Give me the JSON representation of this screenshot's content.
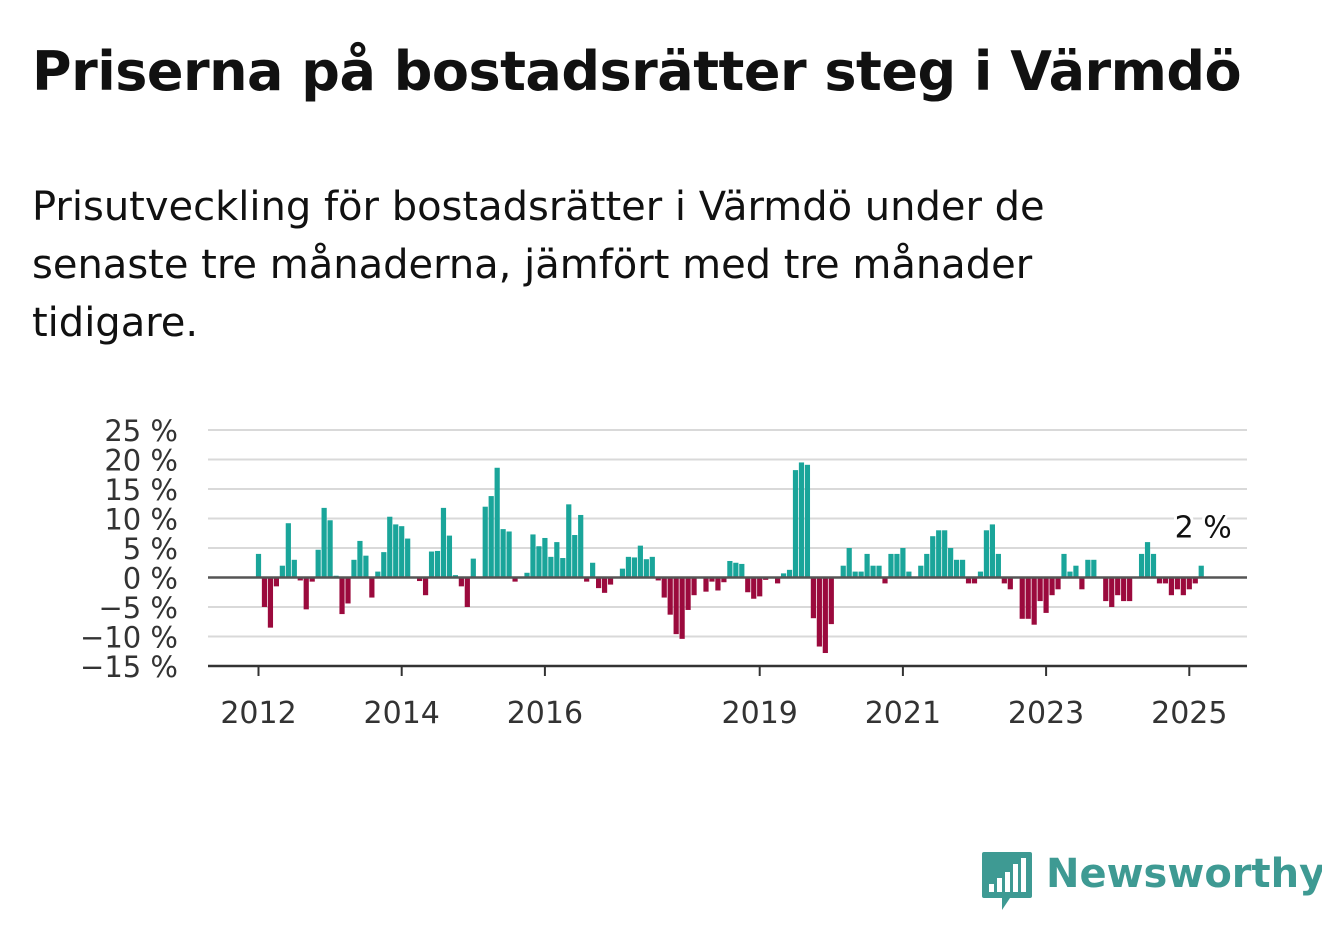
{
  "header": {
    "title": "Priserna på bostadsrätter steg i Värmdö",
    "subtitle": "Prisutveckling för bostadsrätter i Värmdö under de senaste tre månaderna, jämfört med tre månader tidigare."
  },
  "brand": {
    "name": "Newsworthy",
    "icon": "bar-chart-speech-bubble-icon",
    "color": "#3e9a93"
  },
  "chart_data": {
    "type": "bar",
    "title": "Priserna på bostadsrätter steg i Värmdö",
    "subtitle": "Prisutveckling för bostadsrätter i Värmdö under de senaste tre månaderna, jämfört med tre månader tidigare.",
    "xlabel": "",
    "ylabel": "",
    "ylim": [
      -15,
      25
    ],
    "yticks": [
      25,
      20,
      15,
      10,
      5,
      0,
      -5,
      -10,
      -15
    ],
    "ytick_labels": [
      "25 %",
      "20 %",
      "15 %",
      "10 %",
      "5 %",
      "0 %",
      "−5 %",
      "−10 %",
      "−15 %"
    ],
    "xticks": [
      {
        "label": "2012",
        "year": 2012.0
      },
      {
        "label": "2014",
        "year": 2014.0
      },
      {
        "label": "2016",
        "year": 2016.0
      },
      {
        "label": "2019",
        "year": 2019.0
      },
      {
        "label": "2021",
        "year": 2021.0
      },
      {
        "label": "2023",
        "year": 2023.0
      },
      {
        "label": "2025",
        "year": 2025.0
      }
    ],
    "x_start": "2012-01",
    "x_step": "month",
    "grid": true,
    "positive_color": "#1aa59a",
    "negative_color": "#9b0a3d",
    "annotation": {
      "text": "2 %",
      "target": "last"
    },
    "values": [
      4,
      -5,
      -8.5,
      -1.5,
      2,
      9.2,
      3,
      -0.5,
      -5.4,
      -0.7,
      4.7,
      11.8,
      9.7,
      0.3,
      -6.2,
      -4.4,
      3,
      6.2,
      3.7,
      -3.4,
      1,
      4.3,
      10.3,
      9,
      8.7,
      6.6,
      0,
      -0.6,
      -3,
      4.4,
      4.5,
      11.8,
      7.1,
      0.4,
      -1.5,
      -5,
      3.2,
      0,
      12,
      13.8,
      18.6,
      8.2,
      7.8,
      -0.7,
      0,
      0.8,
      7.3,
      5.3,
      6.7,
      3.5,
      6,
      3.3,
      12.4,
      7.2,
      10.6,
      -0.7,
      2.5,
      -1.8,
      -2.6,
      -1.2,
      0,
      1.5,
      3.5,
      3.4,
      5.4,
      3.1,
      3.5,
      -0.5,
      -3.4,
      -6.3,
      -9.6,
      -10.4,
      -5.5,
      -3,
      0,
      -2.4,
      -0.7,
      -2.2,
      -0.8,
      2.8,
      2.5,
      2.3,
      -2.5,
      -3.6,
      -3.2,
      -0.4,
      0,
      -1,
      0.7,
      1.3,
      18.2,
      19.5,
      19.1,
      -6.9,
      -11.7,
      -12.8,
      -7.9,
      0,
      2,
      5,
      1,
      1,
      4,
      2,
      2,
      -1,
      4,
      4,
      5,
      1,
      0,
      2,
      4,
      7,
      8,
      8,
      5,
      3,
      3,
      -1,
      -1,
      1,
      8,
      9,
      4,
      -1,
      -2,
      0,
      -7,
      -7,
      -8,
      -4,
      -6,
      -3,
      -2,
      4,
      1,
      2,
      -2,
      3,
      3,
      0,
      -4,
      -5,
      -3,
      -4,
      -4,
      0,
      4,
      6,
      4,
      -1,
      -1,
      -3,
      -2,
      -3,
      -2,
      -1,
      2
    ]
  }
}
